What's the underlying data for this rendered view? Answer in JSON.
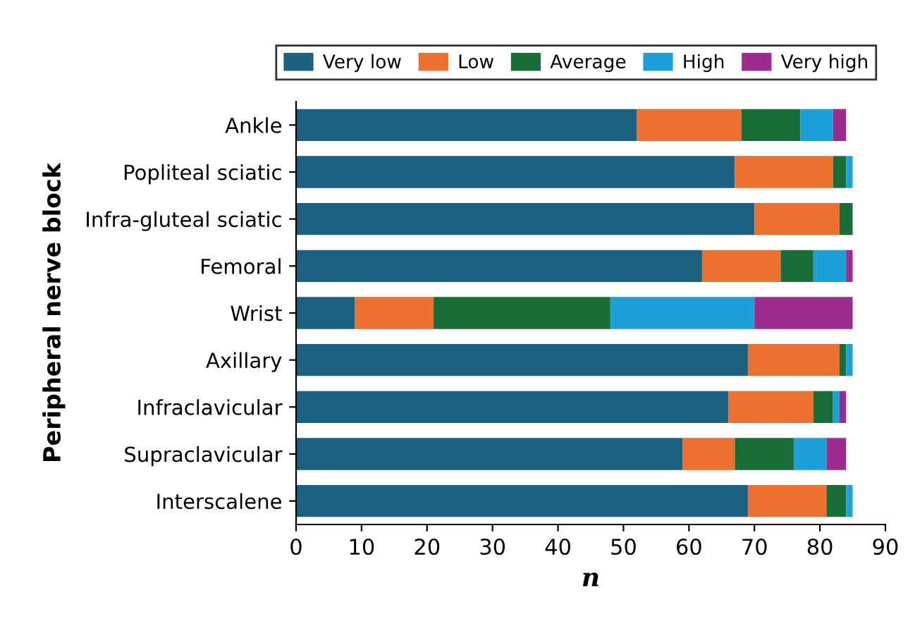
{
  "chart_data": {
    "type": "bar",
    "orientation": "horizontal",
    "stacked": true,
    "categories": [
      "Ankle",
      "Popliteal sciatic",
      "Infra-gluteal sciatic",
      "Femoral",
      "Wrist",
      "Axillary",
      "Infraclavicular",
      "Supraclavicular",
      "Interscalene"
    ],
    "series": [
      {
        "name": "Very low",
        "color": "#1a6182",
        "values": [
          52,
          67,
          70,
          62,
          9,
          69,
          66,
          59,
          69
        ]
      },
      {
        "name": "Low",
        "color": "#ec7030",
        "values": [
          16,
          15,
          13,
          12,
          12,
          14,
          13,
          8,
          12
        ]
      },
      {
        "name": "Average",
        "color": "#186e38",
        "values": [
          9,
          2,
          2,
          5,
          27,
          1,
          3,
          9,
          3
        ]
      },
      {
        "name": "High",
        "color": "#1da0d8",
        "values": [
          5,
          1,
          0,
          5,
          22,
          1,
          1,
          5,
          1
        ]
      },
      {
        "name": "Very high",
        "color": "#9c2c8e",
        "values": [
          2,
          0,
          0,
          1,
          15,
          0,
          1,
          3,
          0
        ]
      }
    ],
    "xlabel": "n",
    "ylabel": "Peripheral nerve block",
    "xlim": [
      0,
      90
    ],
    "xticks": [
      0,
      10,
      20,
      30,
      40,
      50,
      60,
      70,
      80,
      90
    ],
    "grid": false,
    "legend": "top"
  }
}
